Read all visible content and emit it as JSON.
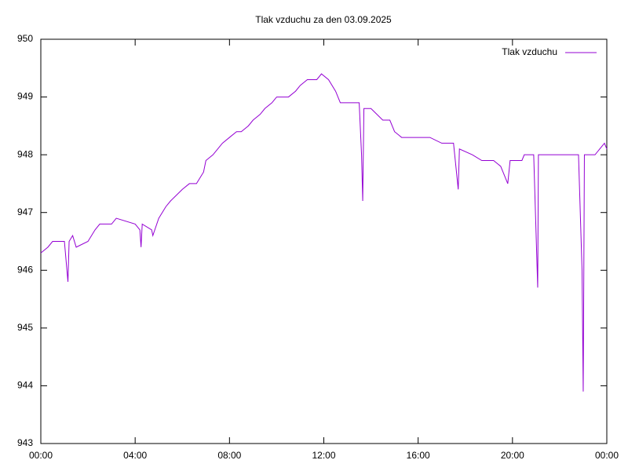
{
  "chart_data": {
    "type": "line",
    "title": "Tlak vzduchu za den 03.09.2025",
    "xlim": [
      0,
      24
    ],
    "xticks": [
      {
        "value": 0,
        "label": "00:00"
      },
      {
        "value": 4,
        "label": "04:00"
      },
      {
        "value": 8,
        "label": "08:00"
      },
      {
        "value": 12,
        "label": "12:00"
      },
      {
        "value": 16,
        "label": "16:00"
      },
      {
        "value": 20,
        "label": "20:00"
      },
      {
        "value": 24,
        "label": "00:00"
      }
    ],
    "ylim": [
      943,
      950
    ],
    "yticks": [
      943,
      944,
      945,
      946,
      947,
      948,
      949,
      950
    ],
    "legend": "top-right",
    "series": [
      {
        "name": "Tlak vzduchu",
        "color": "#9400d3",
        "x": [
          0,
          0.3,
          0.5,
          1.0,
          1.15,
          1.2,
          1.35,
          1.5,
          2.0,
          2.3,
          2.5,
          3.0,
          3.2,
          4.0,
          4.2,
          4.25,
          4.3,
          4.7,
          4.75,
          5.0,
          5.3,
          5.5,
          6.0,
          6.3,
          6.6,
          6.9,
          7.0,
          7.3,
          7.5,
          7.7,
          8.0,
          8.3,
          8.5,
          8.8,
          9.0,
          9.3,
          9.5,
          9.8,
          10.0,
          10.5,
          10.8,
          11.0,
          11.3,
          11.7,
          11.9,
          12.2,
          12.5,
          12.7,
          13.0,
          13.5,
          13.6,
          13.65,
          13.7,
          14.0,
          14.5,
          14.8,
          15.0,
          15.3,
          15.8,
          16.5,
          17.0,
          17.5,
          17.7,
          17.75,
          18.3,
          18.7,
          19.2,
          19.5,
          19.8,
          19.9,
          20.4,
          20.5,
          20.9,
          21.07,
          21.1,
          22.0,
          22.5,
          22.8,
          22.95,
          23.0,
          23.05,
          23.5,
          23.9,
          24.0
        ],
        "values": [
          946.3,
          946.4,
          946.5,
          946.5,
          945.8,
          946.5,
          946.6,
          946.4,
          946.5,
          946.7,
          946.8,
          946.8,
          946.9,
          946.8,
          946.7,
          946.4,
          946.8,
          946.7,
          946.6,
          946.9,
          947.1,
          947.2,
          947.4,
          947.5,
          947.5,
          947.7,
          947.9,
          948.0,
          948.1,
          948.2,
          948.3,
          948.4,
          948.4,
          948.5,
          948.6,
          948.7,
          948.8,
          948.9,
          949.0,
          949.0,
          949.1,
          949.2,
          949.3,
          949.3,
          949.4,
          949.3,
          949.1,
          948.9,
          948.9,
          948.9,
          948.0,
          947.2,
          948.8,
          948.8,
          948.6,
          948.6,
          948.4,
          948.3,
          948.3,
          948.3,
          948.2,
          948.2,
          947.4,
          948.1,
          948.0,
          947.9,
          947.9,
          947.8,
          947.5,
          947.9,
          947.9,
          948.0,
          948.0,
          945.7,
          948.0,
          948.0,
          948.0,
          948.0,
          946.0,
          943.9,
          948.0,
          948.0,
          948.2,
          948.1
        ]
      }
    ]
  }
}
